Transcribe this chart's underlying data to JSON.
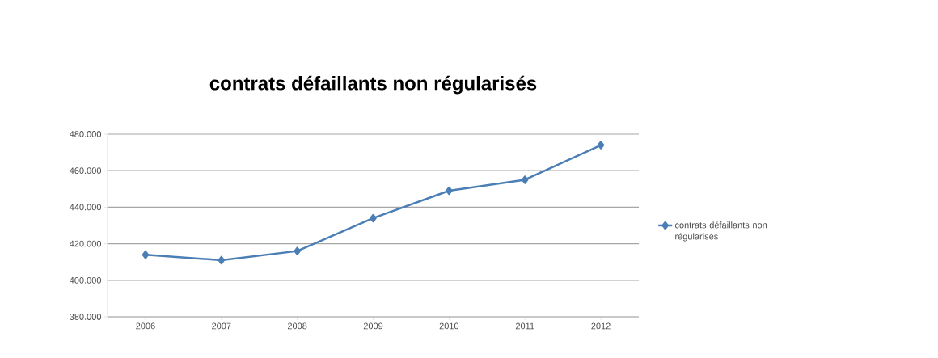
{
  "chart_data": {
    "type": "line",
    "title": "contrats défaillants non régularisés",
    "categories": [
      "2006",
      "2007",
      "2008",
      "2009",
      "2010",
      "2011",
      "2012"
    ],
    "series": [
      {
        "name": "contrats défaillants non régularisés",
        "color": "#4a7eb4",
        "values": [
          414000,
          411000,
          416000,
          434000,
          449000,
          455000,
          474000
        ]
      }
    ],
    "ylim": [
      380000,
      480000
    ],
    "yticks": [
      {
        "value": 380000,
        "label": "380.000"
      },
      {
        "value": 400000,
        "label": "400.000"
      },
      {
        "value": 420000,
        "label": "420.000"
      },
      {
        "value": 440000,
        "label": "440.000"
      },
      {
        "value": 460000,
        "label": "460.000"
      },
      {
        "value": 480000,
        "label": "480.000"
      }
    ],
    "grid": "y",
    "legend": "right",
    "marker": "diamond",
    "line_style": "solid"
  }
}
